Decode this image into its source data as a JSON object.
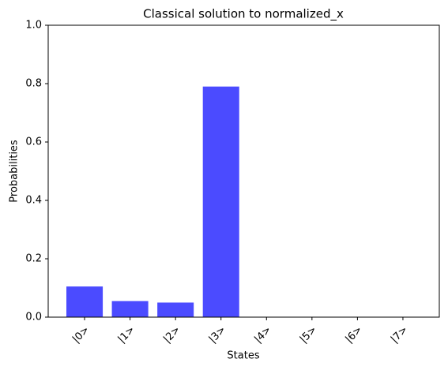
{
  "chart_data": {
    "type": "bar",
    "title": "Classical solution to normalized_x",
    "x_label": "States",
    "y_label": "Probabilities",
    "categories": [
      "|0>",
      "|1>",
      "|2>",
      "|3>",
      "|4>",
      "|5>",
      "|6>",
      "|7>"
    ],
    "values": [
      0.105,
      0.055,
      0.05,
      0.79,
      0,
      0,
      0,
      0
    ],
    "color": "#4b4bff",
    "ylim": [
      0,
      1
    ],
    "yticks": [
      {
        "value": 0,
        "label": "0.0"
      },
      0.2,
      0.4,
      0.6,
      0.8,
      {
        "value": 1,
        "label": "1.0"
      }
    ],
    "grid": false
  }
}
